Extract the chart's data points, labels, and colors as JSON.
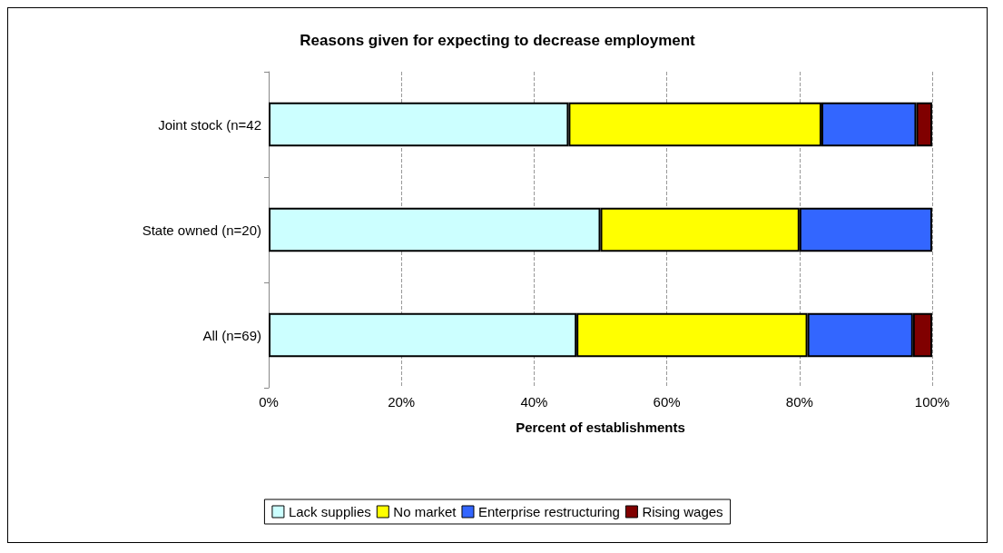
{
  "chart_data": {
    "type": "bar",
    "orientation": "horizontal",
    "stacked": true,
    "title": "Reasons given for expecting to decrease employment",
    "xlabel": "Percent of establishments",
    "categories": [
      "Joint stock (n=42",
      "State owned (n=20)",
      "All (n=69)"
    ],
    "series": [
      {
        "name": "Lack supplies",
        "color": "#ccffff",
        "values": [
          45.2,
          50,
          46.4
        ]
      },
      {
        "name": "No market",
        "color": "#ffff00",
        "values": [
          38.1,
          30,
          34.8
        ]
      },
      {
        "name": "Enterprise restructuring",
        "color": "#3366ff",
        "values": [
          14.3,
          20,
          15.9
        ]
      },
      {
        "name": "Rising wages",
        "color": "#800000",
        "values": [
          2.4,
          null,
          2.9
        ]
      }
    ],
    "xlim": [
      0,
      100
    ],
    "xticks": [
      {
        "value": 0,
        "label": "0%"
      },
      {
        "value": 20,
        "label": "20%"
      },
      {
        "value": 40,
        "label": "40%"
      },
      {
        "value": 60,
        "label": "60%"
      },
      {
        "value": 80,
        "label": "80%"
      },
      {
        "value": 100,
        "label": "100%"
      }
    ],
    "grid": "x",
    "legend": "bottom"
  }
}
